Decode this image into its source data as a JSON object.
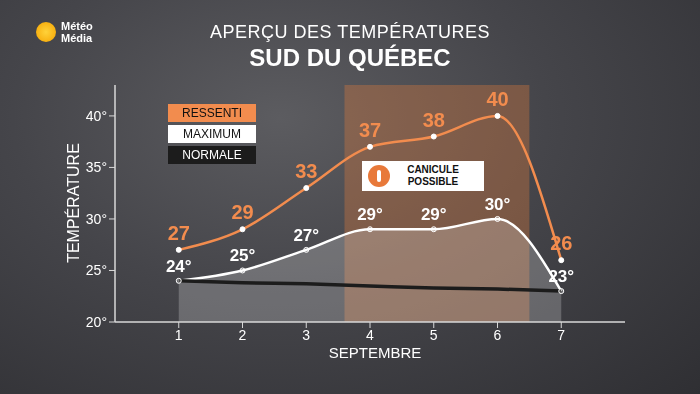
{
  "chart_data": {
    "type": "line",
    "title": "APERÇU DES TEMPÉRATURES",
    "subtitle": "SUD DU QUÉBEC",
    "logo_text": "Météo Média",
    "x_label": "SEPTEMBRE",
    "y_label": "TEMPÉRATURE",
    "x": [
      1,
      2,
      3,
      4,
      5,
      6,
      7
    ],
    "xlim": [
      0,
      8
    ],
    "xticks": [
      1,
      2,
      3,
      4,
      5,
      6,
      7
    ],
    "ylim": [
      20,
      43
    ],
    "yticks": [
      {
        "value": 20,
        "label": "20°"
      },
      {
        "value": 25,
        "label": "25°"
      },
      {
        "value": 30,
        "label": "30°"
      },
      {
        "value": 35,
        "label": "35°"
      },
      {
        "value": 40,
        "label": "40°"
      }
    ],
    "legend": "upper left",
    "series": [
      {
        "name": "RESSENTI",
        "color": "#f28c4e",
        "type": "line",
        "marker": "circle",
        "data_labels": true,
        "values": [
          27,
          29,
          33,
          37,
          38,
          40,
          26
        ]
      },
      {
        "name": "MAXIMUM",
        "color": "#ffffff",
        "type": "area",
        "marker": "circle",
        "data_labels": true,
        "values": [
          24,
          25,
          27,
          29,
          29,
          30,
          23
        ],
        "value_labels": [
          "24°",
          "25°",
          "27°",
          "29°",
          "29°",
          "30°",
          "23°"
        ]
      },
      {
        "name": "NORMALE",
        "color": "#1c1c1c",
        "type": "line",
        "values": [
          24,
          23.8,
          23.7,
          23.5,
          23.3,
          23.2,
          23
        ]
      }
    ],
    "annotations": [
      {
        "label": "CANICULE POSSIBLE",
        "x_start": 3.6,
        "x_end": 6.5
      }
    ]
  }
}
